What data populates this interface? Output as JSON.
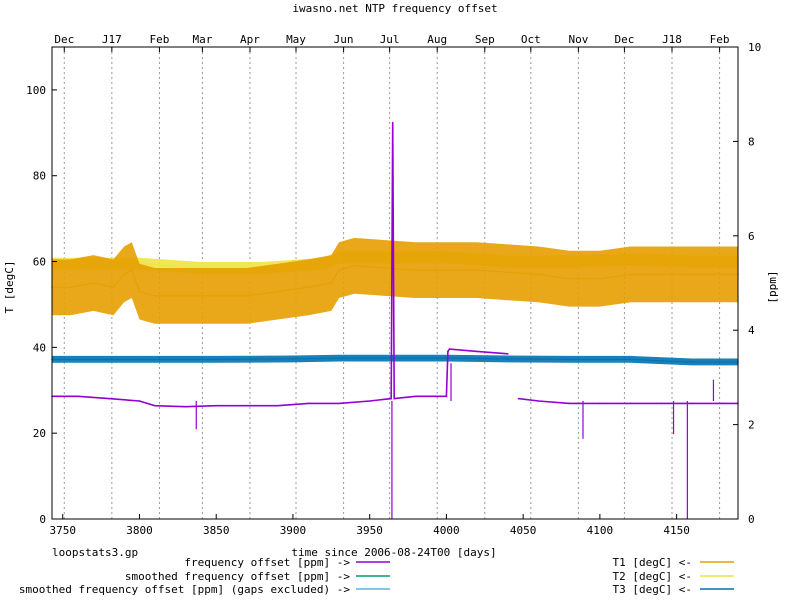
{
  "chart_data": {
    "type": "line",
    "title": "iwasno.net NTP frequency offset",
    "xlabel": "time since 2006-08-24T00 [days]",
    "ylabel_left": "T [degC]",
    "ylabel_right": "[ppm]",
    "xlim": [
      3743,
      4190
    ],
    "ylim_left": [
      0,
      110
    ],
    "ylim_right": [
      0,
      10
    ],
    "x_ticks": [
      3750,
      3800,
      3850,
      3900,
      3950,
      4000,
      4050,
      4100,
      4150
    ],
    "y_left_ticks": [
      0,
      20,
      40,
      60,
      80,
      100
    ],
    "y_right_ticks": [
      0,
      2,
      4,
      6,
      8,
      10
    ],
    "month_ticks": [
      {
        "label": "Dec",
        "x": 3751
      },
      {
        "label": "J17",
        "x": 3782
      },
      {
        "label": "Feb",
        "x": 3813
      },
      {
        "label": "Mar",
        "x": 3841
      },
      {
        "label": "Apr",
        "x": 3872
      },
      {
        "label": "May",
        "x": 3902
      },
      {
        "label": "Jun",
        "x": 3933
      },
      {
        "label": "Jul",
        "x": 3963
      },
      {
        "label": "Aug",
        "x": 3994
      },
      {
        "label": "Sep",
        "x": 4025
      },
      {
        "label": "Oct",
        "x": 4055
      },
      {
        "label": "Nov",
        "x": 4086
      },
      {
        "label": "Dec",
        "x": 4116
      },
      {
        "label": "J18",
        "x": 4147
      },
      {
        "label": "Feb",
        "x": 4178
      }
    ],
    "grid": "dotted vertical at month boundaries",
    "footer_left": "loopstats3.gp",
    "legend": [
      {
        "name": "frequency offset [ppm] ->",
        "color": "#9400d3"
      },
      {
        "name": "smoothed frequency offset [ppm] ->",
        "color": "#009e73"
      },
      {
        "name": "smoothed frequency offset [ppm] (gaps excluded) ->",
        "color": "#56b4e9"
      },
      {
        "name": "T1 [degC] <-",
        "color": "#e69f00"
      },
      {
        "name": "T2 [degC] <-",
        "color": "#f0e442"
      },
      {
        "name": "T3 [degC] <-",
        "color": "#0072b2"
      }
    ],
    "series": [
      {
        "name": "T2 [degC] <-",
        "axis": "left",
        "color": "#f0e442",
        "x": [
          3743,
          3760,
          3780,
          3790,
          3800,
          3840,
          3880,
          3920,
          3930,
          3960,
          4000,
          4040,
          4080,
          4120,
          4160,
          4190
        ],
        "y": [
          59.5,
          59.5,
          59.5,
          59.5,
          59.5,
          58.5,
          58.5,
          59.5,
          61,
          61,
          61,
          60,
          60,
          60.5,
          60,
          60
        ],
        "band": 1.4
      },
      {
        "name": "T1 [degC] <-",
        "axis": "left",
        "color": "#e69f00",
        "x": [
          3743,
          3755,
          3770,
          3783,
          3790,
          3795,
          3800,
          3810,
          3815,
          3830,
          3850,
          3870,
          3890,
          3910,
          3925,
          3930,
          3940,
          3960,
          3980,
          4000,
          4020,
          4040,
          4060,
          4080,
          4100,
          4120,
          4140,
          4160,
          4180,
          4190
        ],
        "y": [
          54,
          54,
          55,
          54,
          57,
          58,
          53,
          52,
          52,
          52,
          52,
          52,
          53,
          54,
          55,
          58,
          59,
          58.5,
          58,
          58,
          58,
          57.5,
          57,
          56,
          56,
          57,
          57,
          57,
          57,
          57
        ],
        "band": 6.5
      },
      {
        "name": "T3 [degC] <-",
        "axis": "left",
        "color": "#0072b2",
        "x": [
          3743,
          3800,
          3850,
          3900,
          3930,
          3960,
          4000,
          4040,
          4080,
          4120,
          4160,
          4190
        ],
        "y": [
          37.2,
          37.2,
          37.2,
          37.3,
          37.5,
          37.5,
          37.5,
          37.3,
          37.2,
          37.2,
          36.6,
          36.6
        ],
        "band": 0.8
      },
      {
        "name": "frequency offset [ppm] ->",
        "axis": "right",
        "color": "#9400d3",
        "x": [
          3743,
          3760,
          3780,
          3800,
          3810,
          3830,
          3850,
          3870,
          3890,
          3910,
          3930,
          3950,
          3964,
          3965,
          3966,
          3980,
          4000,
          4001,
          4002,
          4020,
          4040,
          4041,
          4042,
          4046,
          4047,
          4060,
          4080,
          4100,
          4120,
          4140,
          4160,
          4180,
          4190
        ],
        "y": [
          2.6,
          2.6,
          2.55,
          2.5,
          2.4,
          2.38,
          2.4,
          2.4,
          2.4,
          2.45,
          2.45,
          2.5,
          2.55,
          8.4,
          2.55,
          2.6,
          2.6,
          3.55,
          3.6,
          3.55,
          3.5,
          null,
          null,
          null,
          2.55,
          2.5,
          2.45,
          2.45,
          2.45,
          2.45,
          2.45,
          2.45,
          2.45
        ],
        "spikes": [
          {
            "x": 3837,
            "y": 1.9
          },
          {
            "x": 3964.5,
            "y": 0.0
          },
          {
            "x": 4003,
            "y": 3.3
          },
          {
            "x": 4089,
            "y": 1.7
          },
          {
            "x": 4148,
            "y": 1.8
          },
          {
            "x": 4157,
            "y": 0.0
          },
          {
            "x": 4174,
            "y": 2.95
          }
        ]
      }
    ]
  }
}
